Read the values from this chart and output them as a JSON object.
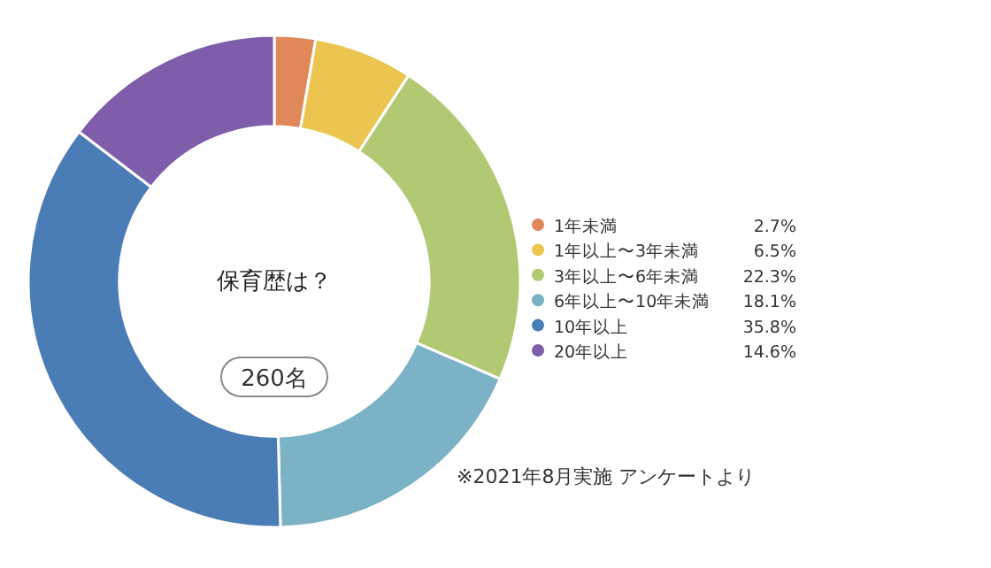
{
  "chart_data": {
    "type": "donut",
    "title": "保育歴は？",
    "categories": [
      "1年未満",
      "1年以上〜3年未満",
      "3年以上〜6年未満",
      "6年以上〜10年未満",
      "10年以上",
      "20年以上"
    ],
    "values": [
      2.7,
      6.5,
      22.3,
      18.1,
      35.8,
      14.6
    ],
    "colors": [
      "#e0885a",
      "#ecc550",
      "#b1c972",
      "#7bb2c5",
      "#4a7db6",
      "#7e5eab"
    ],
    "value_labels": [
      "2.7%",
      "6.5%",
      "22.3%",
      "18.1%",
      "35.8%",
      "14.6%"
    ],
    "legend": "right",
    "annotations": [
      "260名",
      "※2021年8月実施 アンケートより"
    ]
  }
}
